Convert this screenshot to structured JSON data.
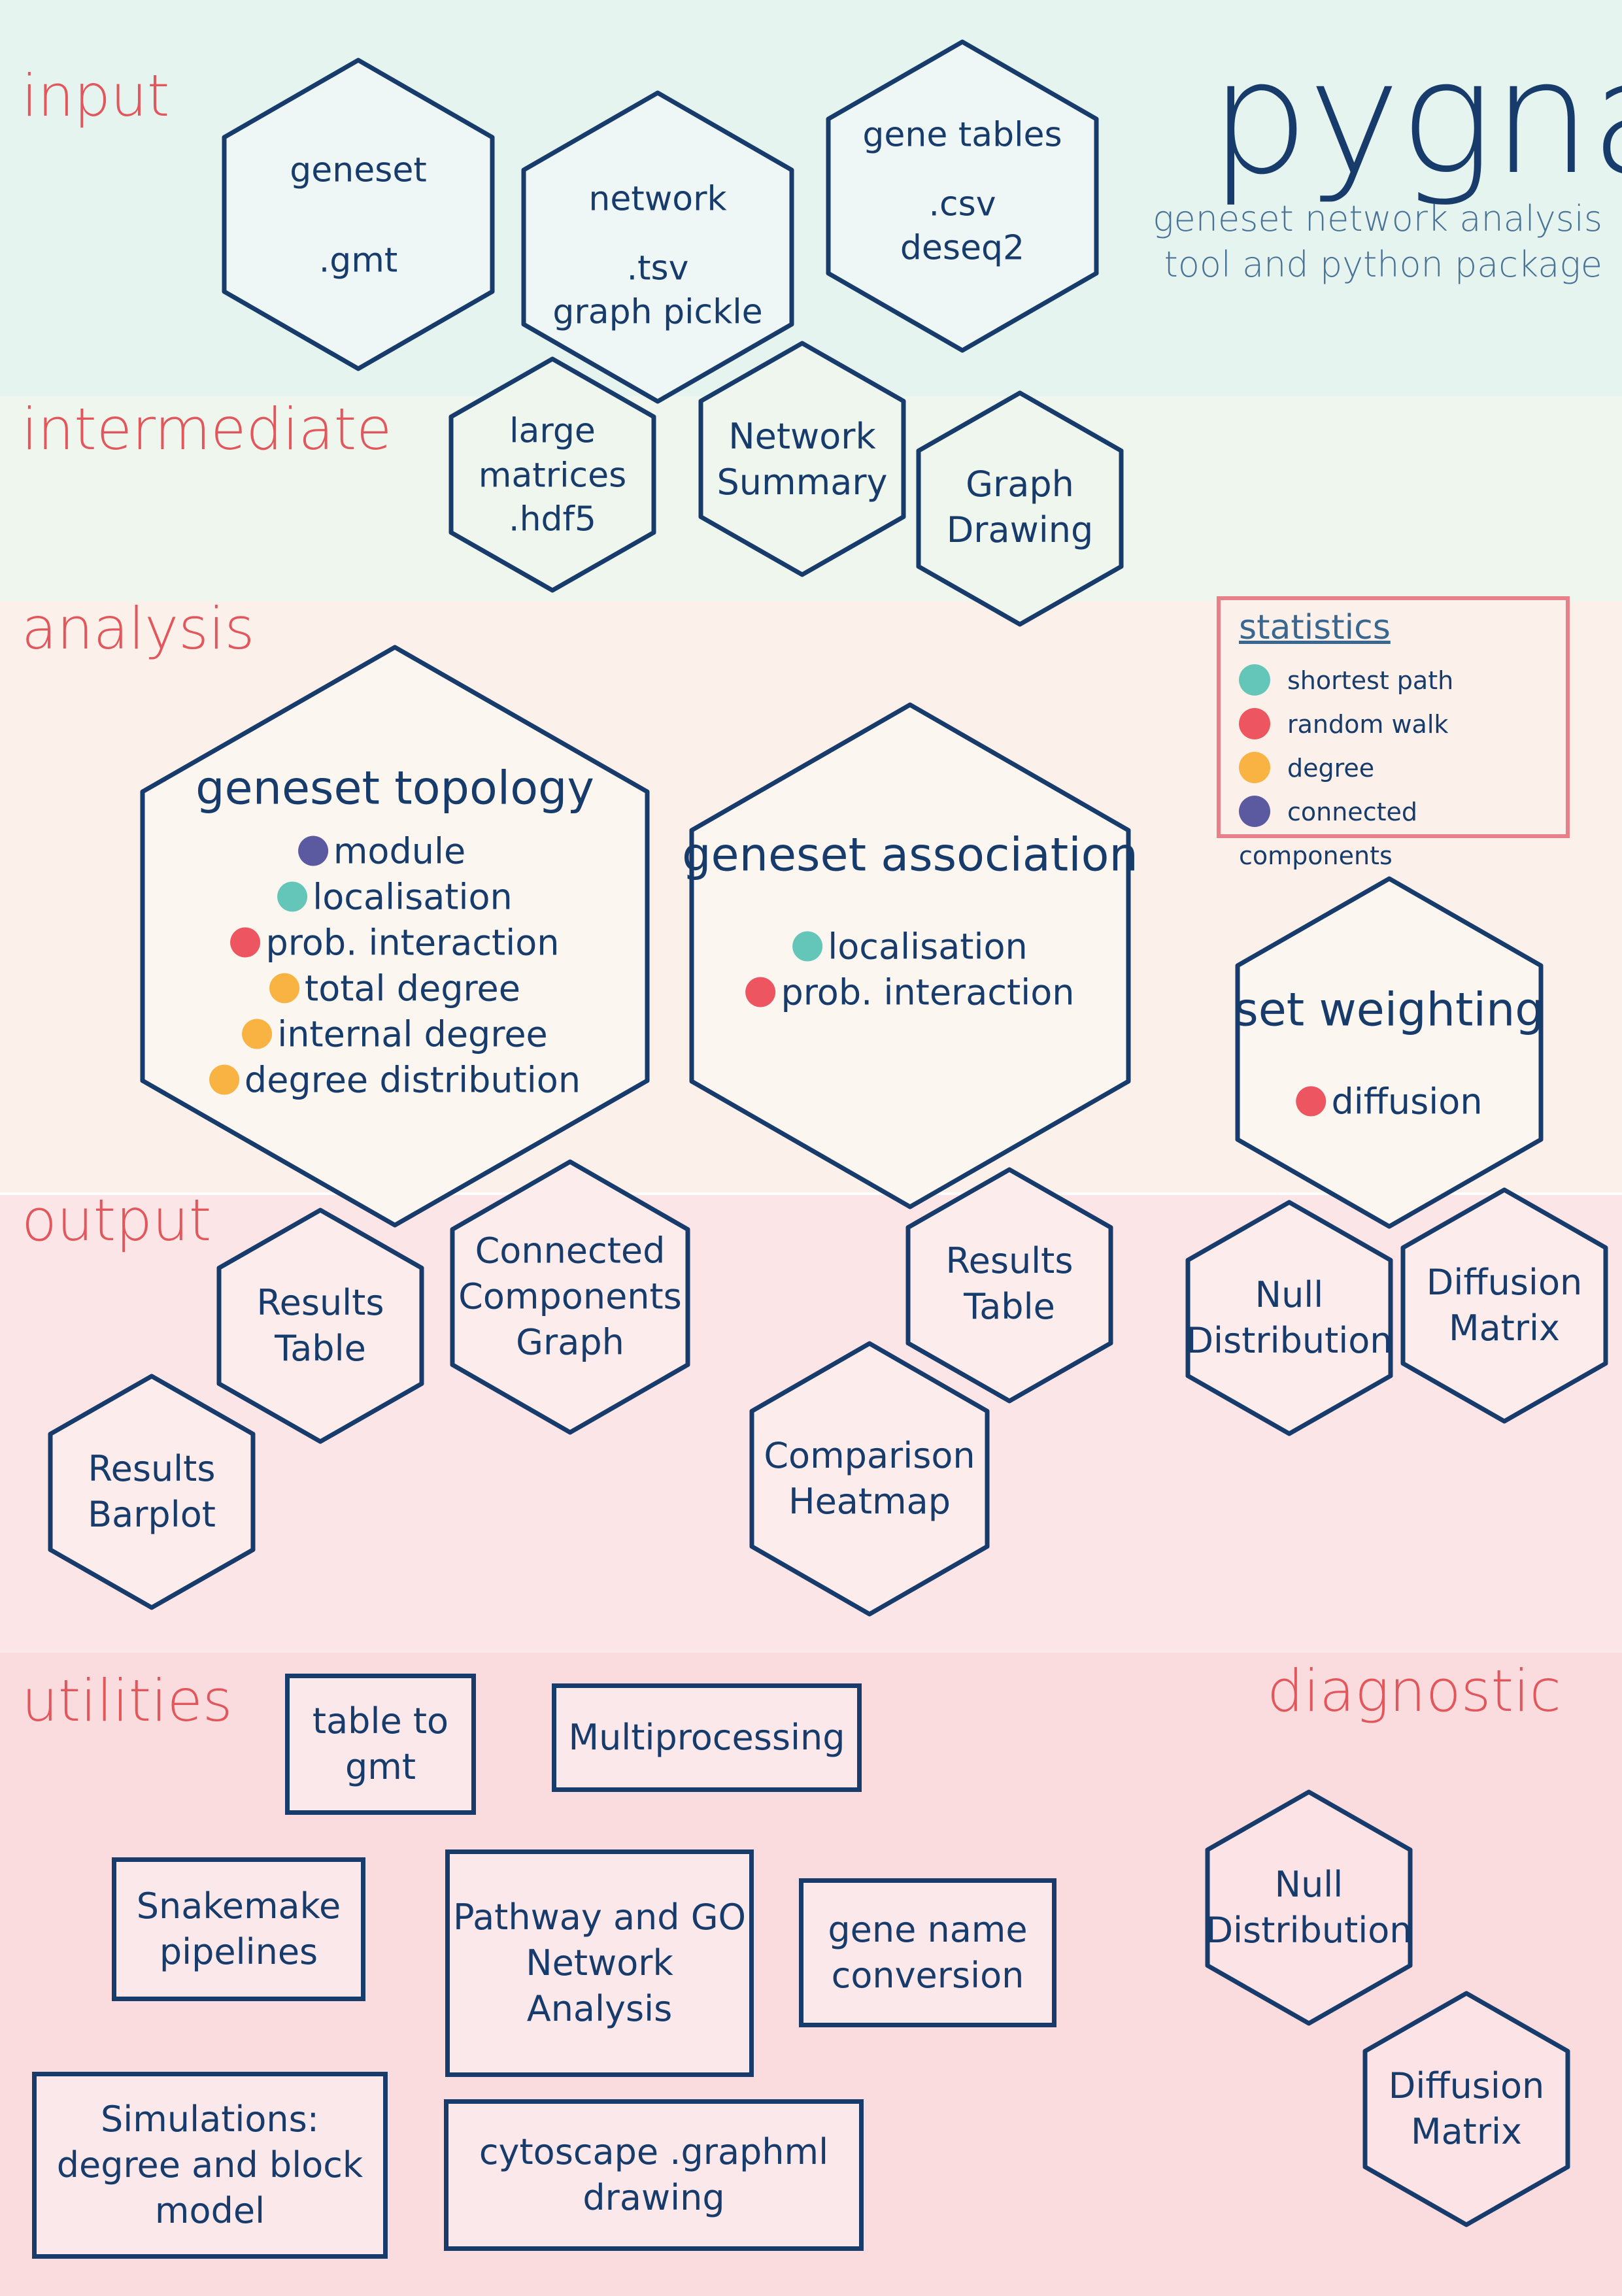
{
  "header": {
    "title": "pygna",
    "subtitle_lines": [
      "geneset network analysis",
      "tool and  python package"
    ]
  },
  "sections": {
    "input": "input",
    "intermediate": "intermediate",
    "analysis": "analysis",
    "output": "output",
    "utilities": "utilities",
    "diagnostic": "diagnostic"
  },
  "colors": {
    "shortest_path": "#63c6b8",
    "random_walk": "#ed5560",
    "degree": "#f8b342",
    "connected_components": "#5b5aa0",
    "outline": "#173b6b",
    "label": "#e2575b"
  },
  "legend": {
    "title": "statistics",
    "items": [
      {
        "label": "shortest path",
        "color": "#63c6b8"
      },
      {
        "label": "random walk",
        "color": "#ed5560"
      },
      {
        "label": "degree",
        "color": "#f8b342"
      },
      {
        "label": "connected components",
        "color": "#5b5aa0"
      }
    ]
  },
  "input": {
    "geneset": {
      "title": "geneset",
      "formats": [
        ".gmt"
      ]
    },
    "network": {
      "title": "network",
      "formats": [
        ".tsv",
        "graph pickle"
      ]
    },
    "gene_tables": {
      "title": "gene tables",
      "formats": [
        ".csv",
        "deseq2"
      ]
    }
  },
  "intermediate": {
    "matrices": [
      "large",
      "matrices",
      ".hdf5"
    ],
    "summary": [
      "Network",
      "Summary"
    ],
    "drawing": [
      "Graph",
      "Drawing"
    ]
  },
  "analysis": {
    "topology": {
      "title": "geneset topology",
      "items": [
        {
          "label": "module",
          "color": "#5b5aa0"
        },
        {
          "label": "localisation",
          "color": "#63c6b8"
        },
        {
          "label": "prob. interaction",
          "color": "#ed5560"
        },
        {
          "label": "total degree",
          "color": "#f8b342"
        },
        {
          "label": "internal degree",
          "color": "#f8b342"
        },
        {
          "label": "degree distribution",
          "color": "#f8b342"
        }
      ]
    },
    "association": {
      "title": "geneset association",
      "items": [
        {
          "label": "localisation",
          "color": "#63c6b8"
        },
        {
          "label": "prob. interaction",
          "color": "#ed5560"
        }
      ]
    },
    "weighting": {
      "title": "set weighting",
      "items": [
        {
          "label": "diffusion",
          "color": "#ed5560"
        }
      ]
    }
  },
  "output": {
    "results_table_1": [
      "Results",
      "Table"
    ],
    "connected_components": [
      "Connected",
      "Components",
      "Graph"
    ],
    "results_barplot": [
      "Results",
      "Barplot"
    ],
    "results_table_2": [
      "Results",
      "Table"
    ],
    "comparison_heatmap": [
      "Comparison",
      "Heatmap"
    ],
    "null_distribution": [
      "Null",
      "Distribution"
    ],
    "diffusion_matrix": [
      "Diffusion",
      "Matrix"
    ]
  },
  "utilities": {
    "table_to_gmt": [
      "table to",
      "gmt"
    ],
    "multiprocessing": [
      "Multiprocessing"
    ],
    "snakemake": [
      "Snakemake",
      "pipelines"
    ],
    "pathway": [
      "Pathway and GO",
      "Network",
      "Analysis"
    ],
    "gene_name": [
      "gene name",
      "conversion"
    ],
    "simulations": [
      "Simulations:",
      "degree and block",
      "model"
    ],
    "cytoscape": [
      "cytoscape .graphml",
      "drawing"
    ]
  },
  "diagnostic": {
    "null_distribution": [
      "Null",
      "Distribution"
    ],
    "diffusion_matrix": [
      "Diffusion",
      "Matrix"
    ]
  }
}
